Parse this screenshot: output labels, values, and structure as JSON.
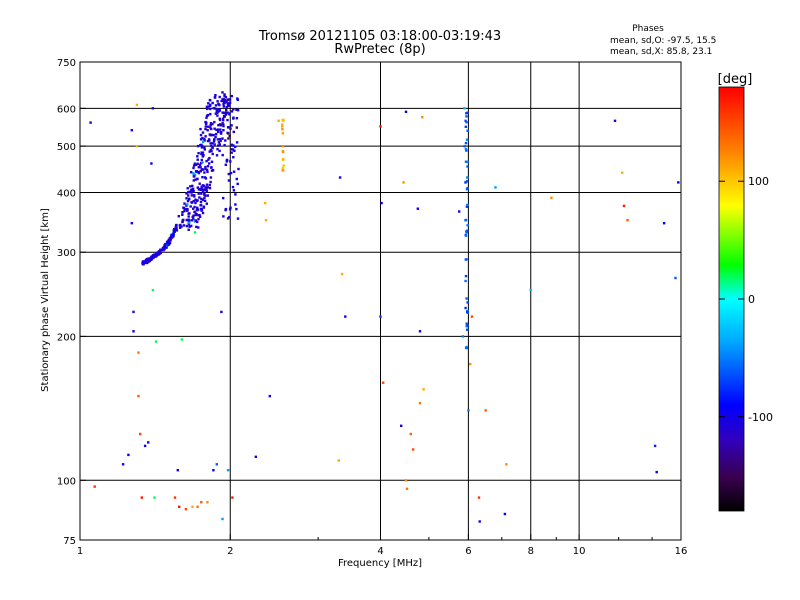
{
  "header": {
    "title_line1": "Tromsø 20121105 03:18:00-03:19:43",
    "title_line2": "RwPretec (8p)",
    "stats_title": "Phases",
    "stats_line1": "mean, sd,O: -97.5, 15.5",
    "stats_line2": "mean, sd,X:  85.8, 23.1"
  },
  "colorbar": {
    "unit": "[deg]",
    "tick_labels": [
      "100",
      "0",
      "-100"
    ],
    "tick_values": [
      100,
      0,
      -100
    ],
    "range": [
      -180,
      180
    ]
  },
  "chart_data": {
    "type": "scatter",
    "title": "Tromsø 20121105 03:18:00-03:19:43",
    "subtitle": "RwPretec (8p)",
    "xlabel": "Frequency [MHz]",
    "ylabel": "Stationary phase Virtual Height [km]",
    "x_scale": "log",
    "y_scale": "log",
    "xlim": [
      1,
      16
    ],
    "ylim": [
      75,
      750
    ],
    "x_ticks": [
      1,
      2,
      4,
      6,
      8,
      10,
      16
    ],
    "x_tick_labels": [
      "1",
      "2",
      "4",
      "6",
      "8",
      "10",
      "16"
    ],
    "y_ticks": [
      75,
      100,
      200,
      300,
      400,
      500,
      600,
      750
    ],
    "y_tick_labels": [
      "75",
      "100",
      "200",
      "300",
      "400",
      "500",
      "600",
      "750"
    ],
    "grid_x": [
      2,
      4,
      6,
      8,
      10
    ],
    "grid_y": [
      100,
      200,
      300,
      400,
      500,
      600
    ],
    "trace_point_count": 600,
    "series": [
      {
        "group": "O-mode F-layer trace",
        "points": [
          [
            1.34,
            285
          ],
          [
            1.38,
            290
          ],
          [
            1.42,
            296
          ],
          [
            1.46,
            303
          ],
          [
            1.5,
            313
          ],
          [
            1.54,
            328
          ],
          [
            1.58,
            350
          ],
          [
            1.62,
            380
          ],
          [
            1.66,
            420
          ],
          [
            1.7,
            470
          ],
          [
            1.74,
            530
          ],
          [
            1.78,
            590
          ],
          [
            1.82,
            630
          ]
        ]
      },
      {
        "group": "scattered echoes",
        "points": [
          [
            1.05,
            560,
            -110
          ],
          [
            1.07,
            97,
            160
          ],
          [
            1.22,
            108,
            -100
          ],
          [
            1.25,
            113,
            -95
          ],
          [
            1.27,
            345,
            -100
          ],
          [
            1.27,
            540,
            -100
          ],
          [
            1.28,
            225,
            -110
          ],
          [
            1.28,
            205,
            -100
          ],
          [
            1.3,
            610,
            110
          ],
          [
            1.3,
            500,
            110
          ],
          [
            1.31,
            185,
            130
          ],
          [
            1.31,
            150,
            140
          ],
          [
            1.32,
            125,
            150
          ],
          [
            1.33,
            92,
            170
          ],
          [
            1.35,
            118,
            -100
          ],
          [
            1.37,
            120,
            -105
          ],
          [
            1.39,
            460,
            -100
          ],
          [
            1.4,
            600,
            -110
          ],
          [
            1.4,
            250,
            20
          ],
          [
            1.41,
            92,
            20
          ],
          [
            1.42,
            195,
            20
          ],
          [
            1.55,
            92,
            160
          ],
          [
            1.57,
            105,
            -100
          ],
          [
            1.58,
            88,
            170
          ],
          [
            1.6,
            197,
            20
          ],
          [
            1.63,
            87,
            150
          ],
          [
            1.68,
            88,
            110
          ],
          [
            1.7,
            330,
            20
          ],
          [
            1.72,
            88,
            130
          ],
          [
            1.75,
            90,
            140
          ],
          [
            1.8,
            90,
            120
          ],
          [
            1.85,
            105,
            -90
          ],
          [
            1.88,
            108,
            -60
          ],
          [
            1.92,
            225,
            -100
          ],
          [
            1.93,
            83,
            -40
          ],
          [
            1.98,
            105,
            -40
          ],
          [
            2.02,
            92,
            170
          ],
          [
            2.25,
            112,
            -100
          ],
          [
            2.35,
            380,
            110
          ],
          [
            2.36,
            350,
            110
          ],
          [
            2.4,
            150,
            -100
          ],
          [
            2.5,
            565,
            110
          ],
          [
            2.55,
            500,
            120
          ],
          [
            2.55,
            450,
            100
          ],
          [
            3.3,
            110,
            110
          ],
          [
            3.32,
            430,
            -110
          ],
          [
            3.35,
            270,
            110
          ],
          [
            3.4,
            220,
            -110
          ],
          [
            4.0,
            550,
            170
          ],
          [
            4.0,
            220,
            -70
          ],
          [
            4.02,
            380,
            -100
          ],
          [
            4.05,
            160,
            150
          ],
          [
            4.4,
            130,
            -100
          ],
          [
            4.45,
            420,
            120
          ],
          [
            4.5,
            590,
            -90
          ],
          [
            4.5,
            100,
            120
          ],
          [
            4.52,
            96,
            130
          ],
          [
            4.6,
            125,
            140
          ],
          [
            4.65,
            116,
            150
          ],
          [
            4.75,
            370,
            -100
          ],
          [
            4.8,
            205,
            -100
          ],
          [
            4.8,
            145,
            130
          ],
          [
            4.85,
            575,
            120
          ],
          [
            4.88,
            155,
            110
          ],
          [
            5.75,
            365,
            -100
          ],
          [
            5.85,
            200,
            -50
          ],
          [
            5.9,
            600,
            -30
          ],
          [
            5.9,
            500,
            -60
          ],
          [
            5.92,
            420,
            -80
          ],
          [
            5.92,
            350,
            -60
          ],
          [
            5.95,
            290,
            -50
          ],
          [
            5.95,
            240,
            -60
          ],
          [
            5.95,
            210,
            -40
          ],
          [
            5.95,
            190,
            -40
          ],
          [
            6.0,
            140,
            -50
          ],
          [
            6.05,
            175,
            120
          ],
          [
            6.1,
            220,
            150
          ],
          [
            6.3,
            92,
            160
          ],
          [
            6.32,
            82,
            -100
          ],
          [
            6.5,
            140,
            140
          ],
          [
            6.8,
            410,
            -40
          ],
          [
            7.1,
            85,
            -90
          ],
          [
            7.15,
            108,
            120
          ],
          [
            8.0,
            250,
            -30
          ],
          [
            8.8,
            390,
            120
          ],
          [
            11.8,
            565,
            -100
          ],
          [
            12.2,
            440,
            110
          ],
          [
            12.3,
            375,
            170
          ],
          [
            12.5,
            350,
            140
          ],
          [
            14.2,
            118,
            -80
          ],
          [
            14.3,
            104,
            -90
          ],
          [
            14.8,
            345,
            -90
          ],
          [
            15.6,
            265,
            -60
          ],
          [
            15.8,
            420,
            -90
          ]
        ]
      }
    ]
  }
}
